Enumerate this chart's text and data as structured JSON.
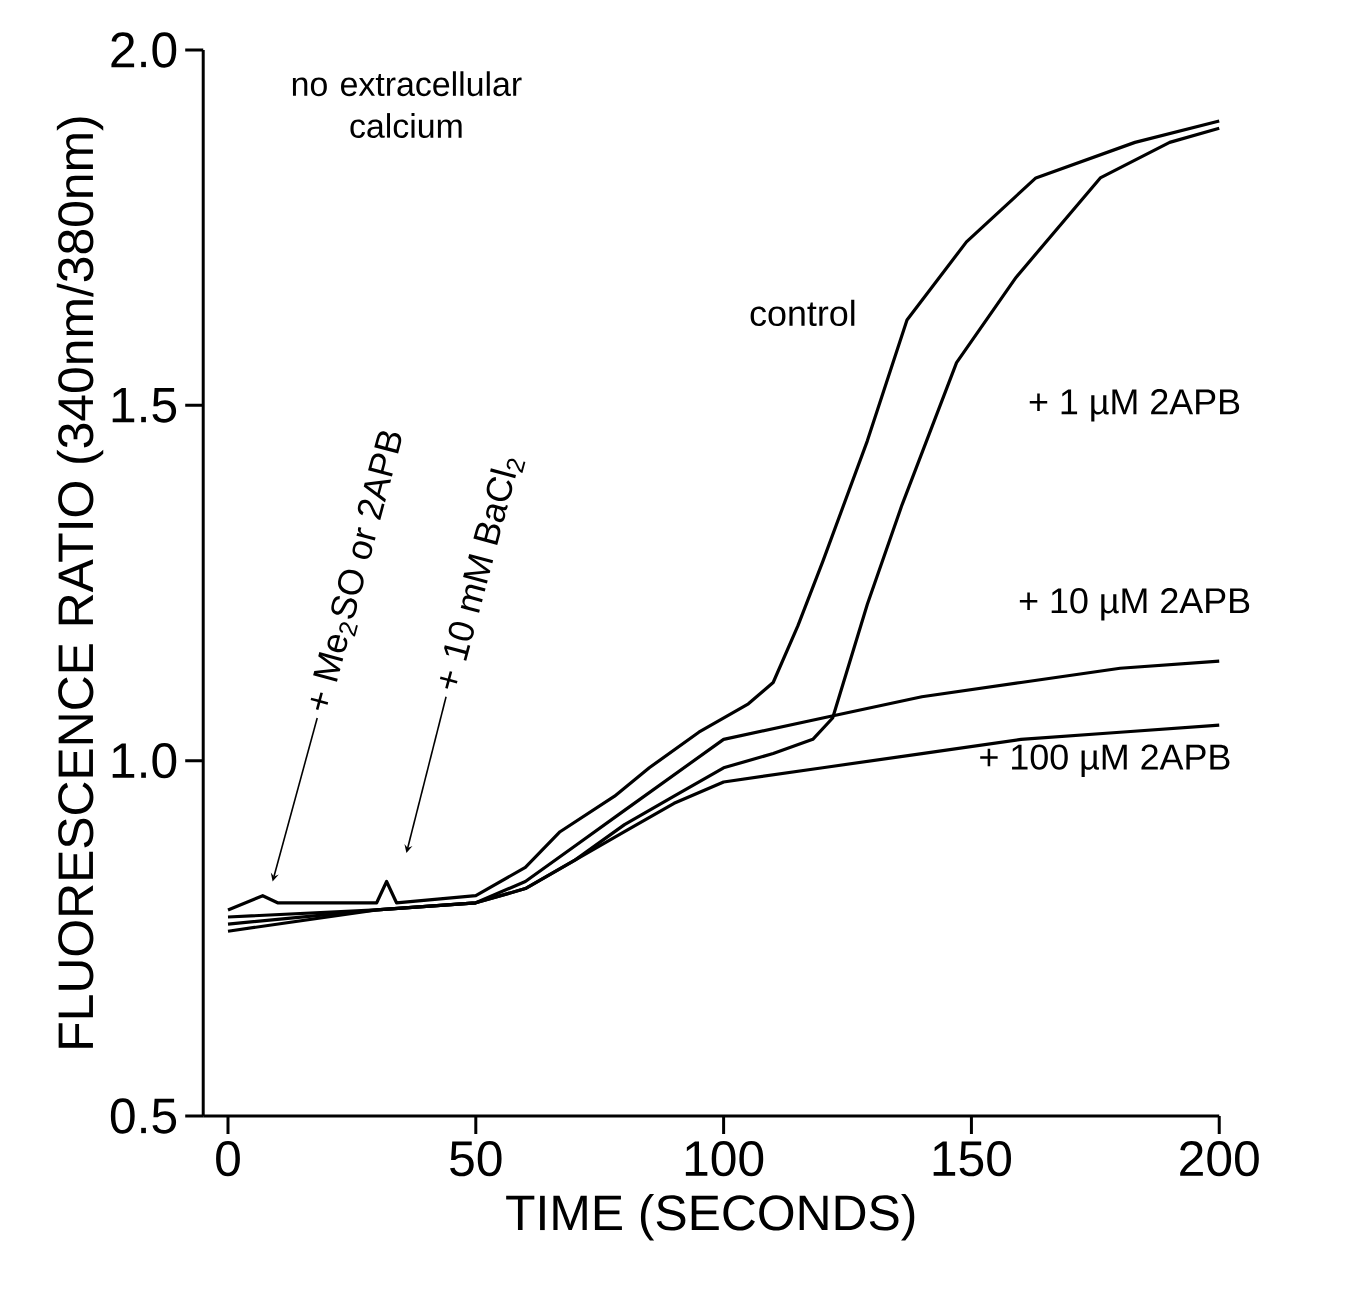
{
  "chart_data": {
    "type": "line",
    "xlabel": "TIME (SECONDS)",
    "ylabel": "FLUORESCENCE RATIO (340nm/380nm)",
    "xlim": [
      -5,
      200
    ],
    "ylim": [
      0.5,
      2.0
    ],
    "xticks": [
      0,
      50,
      100,
      150,
      200
    ],
    "yticks": [
      0.5,
      {
        "value": 1.0,
        "label": "1.0"
      },
      1.5,
      {
        "value": 2.0,
        "label": "2.0"
      }
    ],
    "line_style": "solid",
    "series": [
      {
        "name": "control",
        "color": "#000000",
        "x": [
          0,
          7,
          10,
          30,
          32,
          34,
          50,
          60,
          67,
          78,
          85,
          95,
          105,
          110,
          115,
          120,
          129,
          137,
          149,
          163,
          183,
          200
        ],
        "values": [
          0.79,
          0.81,
          0.8,
          0.8,
          0.83,
          0.8,
          0.81,
          0.85,
          0.9,
          0.95,
          0.99,
          1.04,
          1.08,
          1.11,
          1.19,
          1.28,
          1.45,
          1.62,
          1.73,
          1.82,
          1.87,
          1.9
        ]
      },
      {
        "name": "+ 1 µM 2APB",
        "color": "#000000",
        "x": [
          0,
          30,
          50,
          60,
          70,
          80,
          90,
          100,
          110,
          118,
          122,
          129,
          136,
          147,
          159,
          176,
          190,
          200
        ],
        "values": [
          0.78,
          0.79,
          0.8,
          0.82,
          0.86,
          0.91,
          0.95,
          0.99,
          1.01,
          1.03,
          1.06,
          1.22,
          1.36,
          1.56,
          1.68,
          1.82,
          1.87,
          1.89
        ]
      },
      {
        "name": "+ 10 µM 2APB",
        "color": "#000000",
        "x": [
          0,
          30,
          50,
          60,
          70,
          80,
          90,
          100,
          120,
          140,
          160,
          180,
          200
        ],
        "values": [
          0.77,
          0.79,
          0.8,
          0.83,
          0.88,
          0.93,
          0.98,
          1.03,
          1.06,
          1.09,
          1.11,
          1.13,
          1.14
        ]
      },
      {
        "name": "+ 100 µM 2APB",
        "color": "#000000",
        "x": [
          0,
          30,
          50,
          60,
          70,
          80,
          90,
          100,
          120,
          140,
          160,
          180,
          200
        ],
        "values": [
          0.76,
          0.79,
          0.8,
          0.82,
          0.86,
          0.9,
          0.94,
          0.97,
          0.99,
          1.01,
          1.03,
          1.04,
          1.05
        ]
      }
    ],
    "annotations": [
      "no extracellular calcium",
      "+ Me$_{2}$SO or 2APB",
      "+ 10 mM BaCl$_{2}$"
    ]
  }
}
